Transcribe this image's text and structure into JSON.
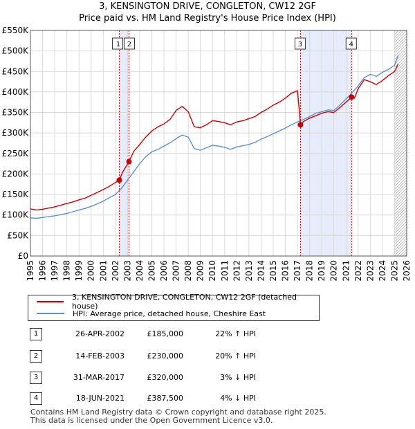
{
  "title_line1": "3, KENSINGTON DRIVE, CONGLETON, CW12 2GF",
  "title_line2": "Price paid vs. HM Land Registry's House Price Index (HPI)",
  "legend": {
    "property": "3, KENSINGTON DRIVE, CONGLETON, CW12 2GF (detached house)",
    "hpi": "HPI: Average price, detached house, Cheshire East"
  },
  "colors": {
    "property": "#cc0000",
    "hpi": "#5b8fd0",
    "shade": "#e6ecfa",
    "grid": "#d9d9d9",
    "vline": "#cc0000"
  },
  "transactions": [
    {
      "num": "1",
      "date": "26-APR-2002",
      "price": "£185,000",
      "delta": "22% ↑ HPI"
    },
    {
      "num": "2",
      "date": "14-FEB-2003",
      "price": "£230,000",
      "delta": "20% ↑ HPI"
    },
    {
      "num": "3",
      "date": "31-MAR-2017",
      "price": "£320,000",
      "delta": "3% ↓ HPI"
    },
    {
      "num": "4",
      "date": "18-JUN-2021",
      "price": "£387,500",
      "delta": "4% ↓ HPI"
    }
  ],
  "footer_line1": "Contains HM Land Registry data © Crown copyright and database right 2025.",
  "footer_line2": "This data is licensed under the Open Government Licence v3.0.",
  "chart_data": {
    "type": "line",
    "title": "3, KENSINGTON DRIVE, CONGLETON, CW12 2GF",
    "xlim": [
      1995,
      2026
    ],
    "ylim": [
      0,
      550000
    ],
    "x_ticks": [
      1995,
      1996,
      1997,
      1998,
      1999,
      2000,
      2001,
      2002,
      2003,
      2004,
      2005,
      2006,
      2007,
      2008,
      2009,
      2010,
      2011,
      2012,
      2013,
      2014,
      2015,
      2016,
      2017,
      2018,
      2019,
      2020,
      2021,
      2022,
      2023,
      2024,
      2025,
      2026
    ],
    "y_ticks": [
      0,
      50000,
      100000,
      150000,
      200000,
      250000,
      300000,
      350000,
      400000,
      450000,
      500000,
      550000
    ],
    "y_tick_labels": [
      "£0",
      "£50K",
      "£100K",
      "£150K",
      "£200K",
      "£250K",
      "£300K",
      "£350K",
      "£400K",
      "£450K",
      "£500K",
      "£550K"
    ],
    "shaded_ranges": [
      [
        2002.32,
        2003.12
      ],
      [
        2017.25,
        2021.46
      ]
    ],
    "hatched_from": 2025.0,
    "series": [
      {
        "name": "3, KENSINGTON DRIVE, CONGLETON, CW12 2GF (detached house)",
        "x": [
          1995.0,
          1995.5,
          1996.0,
          1997.0,
          1998.0,
          1998.5,
          1999.0,
          1999.5,
          2000.0,
          2000.5,
          2001.0,
          2001.5,
          2002.32,
          2002.6,
          2003.12,
          2003.5,
          2004.0,
          2004.5,
          2005.0,
          2005.5,
          2006.0,
          2006.5,
          2007.0,
          2007.5,
          2008.0,
          2008.5,
          2009.0,
          2009.5,
          2010.0,
          2010.5,
          2011.0,
          2011.5,
          2012.0,
          2012.5,
          2013.0,
          2013.5,
          2014.0,
          2014.5,
          2015.0,
          2015.5,
          2016.0,
          2016.5,
          2017.0,
          2017.25,
          2017.5,
          2018.0,
          2018.5,
          2019.0,
          2019.5,
          2020.0,
          2020.5,
          2021.0,
          2021.46,
          2021.7,
          2022.0,
          2022.5,
          2023.0,
          2023.5,
          2024.0,
          2024.5,
          2025.0,
          2025.3
        ],
        "values": [
          115000,
          112000,
          114000,
          120000,
          128000,
          132000,
          137000,
          141000,
          148000,
          155000,
          162000,
          170000,
          185000,
          205000,
          230000,
          255000,
          272000,
          290000,
          305000,
          315000,
          322000,
          333000,
          355000,
          365000,
          352000,
          315000,
          313000,
          320000,
          330000,
          328000,
          325000,
          320000,
          327000,
          330000,
          335000,
          340000,
          350000,
          358000,
          368000,
          375000,
          385000,
          397000,
          403000,
          320000,
          328000,
          336000,
          342000,
          348000,
          352000,
          350000,
          362000,
          375000,
          387500,
          385000,
          408000,
          430000,
          425000,
          418000,
          428000,
          440000,
          450000,
          468000
        ]
      },
      {
        "name": "HPI: Average price, detached house, Cheshire East",
        "x": [
          1995.0,
          1995.5,
          1996.0,
          1997.0,
          1998.0,
          1998.5,
          1999.0,
          1999.5,
          2000.0,
          2000.5,
          2001.0,
          2001.5,
          2002.0,
          2002.5,
          2003.0,
          2003.5,
          2004.0,
          2004.5,
          2005.0,
          2005.5,
          2006.0,
          2006.5,
          2007.0,
          2007.5,
          2008.0,
          2008.5,
          2009.0,
          2009.5,
          2010.0,
          2010.5,
          2011.0,
          2011.5,
          2012.0,
          2012.5,
          2013.0,
          2013.5,
          2014.0,
          2014.5,
          2015.0,
          2015.5,
          2016.0,
          2016.5,
          2017.0,
          2017.5,
          2018.0,
          2018.5,
          2019.0,
          2019.5,
          2020.0,
          2020.5,
          2021.0,
          2021.5,
          2022.0,
          2022.5,
          2023.0,
          2023.5,
          2024.0,
          2024.5,
          2025.0,
          2025.3
        ],
        "values": [
          93000,
          92000,
          94000,
          98000,
          104000,
          108000,
          112000,
          116000,
          121000,
          127000,
          134000,
          142000,
          150000,
          165000,
          185000,
          205000,
          225000,
          242000,
          254000,
          260000,
          268000,
          276000,
          286000,
          295000,
          290000,
          262000,
          258000,
          264000,
          270000,
          268000,
          265000,
          260000,
          266000,
          269000,
          272000,
          277000,
          285000,
          291000,
          298000,
          305000,
          312000,
          320000,
          327000,
          333000,
          340000,
          348000,
          352000,
          356000,
          355000,
          368000,
          383000,
          398000,
          415000,
          435000,
          443000,
          438000,
          448000,
          455000,
          465000,
          490000
        ]
      }
    ],
    "sales": [
      {
        "label": "1",
        "x": 2002.32,
        "value": 185000
      },
      {
        "label": "2",
        "x": 2003.12,
        "value": 230000
      },
      {
        "label": "3",
        "x": 2017.25,
        "value": 320000
      },
      {
        "label": "4",
        "x": 2021.46,
        "value": 387500
      }
    ]
  }
}
